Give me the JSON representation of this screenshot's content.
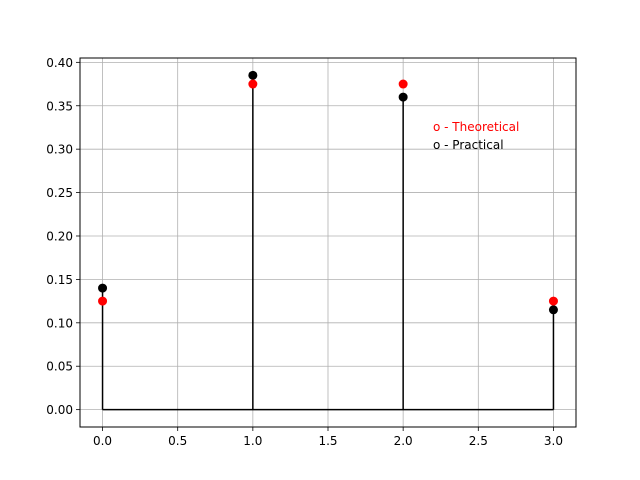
{
  "chart_data": {
    "type": "scatter",
    "title": "",
    "xlabel": "",
    "ylabel": "",
    "xlim": [
      -0.15,
      3.15
    ],
    "ylim": [
      -0.02,
      0.405
    ],
    "grid": true,
    "xticks": [
      "0.0",
      "0.5",
      "1.0",
      "1.5",
      "2.0",
      "2.5",
      "3.0"
    ],
    "yticks": [
      "0.00",
      "0.05",
      "0.10",
      "0.15",
      "0.20",
      "0.25",
      "0.30",
      "0.35",
      "0.40"
    ],
    "x": [
      0,
      1,
      2,
      3
    ],
    "series": [
      {
        "name": "Theoretical",
        "values": [
          0.125,
          0.375,
          0.375,
          0.125
        ],
        "color": "#ff0000"
      },
      {
        "name": "Practical",
        "values": [
          0.14,
          0.385,
          0.36,
          0.115
        ],
        "color": "#000000"
      }
    ],
    "legend": {
      "placement": "right-upper",
      "entries": [
        {
          "text": "o - Theoretical",
          "color": "#ff0000"
        },
        {
          "text": "o - Practical",
          "color": "#000000"
        }
      ]
    }
  }
}
